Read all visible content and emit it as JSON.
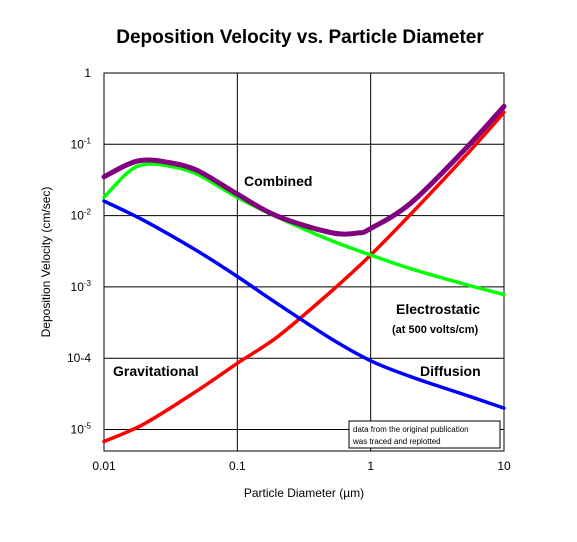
{
  "chart_data": {
    "type": "line",
    "title": "Deposition Velocity vs. Particle Diameter",
    "xlabel": "Particle Diameter (µm)",
    "ylabel": "Deposition Velocity (cm/sec)",
    "xscale": "log",
    "yscale": "log",
    "xlim": [
      0.01,
      10
    ],
    "ylim": [
      5e-06,
      1
    ],
    "grid": true,
    "x_ticks": [
      {
        "value": 0.01,
        "label": "0.01"
      },
      {
        "value": 0.1,
        "label": "0.1"
      },
      {
        "value": 1,
        "label": "1"
      },
      {
        "value": 10,
        "label": "10"
      }
    ],
    "y_ticks": [
      {
        "value": 1,
        "base": "1",
        "exp": ""
      },
      {
        "value": 0.1,
        "base": "10",
        "exp": "-1"
      },
      {
        "value": 0.01,
        "base": "10",
        "exp": "-2"
      },
      {
        "value": 0.001,
        "base": "10",
        "exp": "-3"
      },
      {
        "value": 0.0001,
        "base": "10-4",
        "exp": ""
      },
      {
        "value": 1e-05,
        "base": "10",
        "exp": "-5"
      }
    ],
    "series": [
      {
        "label": "Gravitational",
        "color": "#ff0000",
        "x": [
          0.01,
          0.02,
          0.05,
          0.1,
          0.2,
          0.5,
          1,
          2,
          5,
          10
        ],
        "y": [
          6.8e-06,
          1.2e-05,
          3.5e-05,
          8.5e-05,
          0.0002,
          0.00085,
          0.0028,
          0.0105,
          0.065,
          0.28
        ]
      },
      {
        "label": "Diffusion",
        "color": "#0000ff",
        "x": [
          0.01,
          0.02,
          0.05,
          0.1,
          0.2,
          0.5,
          1,
          2,
          5,
          10
        ],
        "y": [
          0.016,
          0.0085,
          0.0032,
          0.0014,
          0.00058,
          0.00019,
          9.2e-05,
          5.5e-05,
          3.1e-05,
          2e-05
        ]
      },
      {
        "label": "Electrostatic",
        "color": "#00ff00",
        "x": [
          0.01,
          0.015,
          0.02,
          0.03,
          0.05,
          0.1,
          0.2,
          0.5,
          1,
          2,
          5,
          10
        ],
        "y": [
          0.018,
          0.04,
          0.052,
          0.05,
          0.038,
          0.018,
          0.0095,
          0.0045,
          0.0028,
          0.0018,
          0.0011,
          0.00078
        ]
      },
      {
        "label": "Combined",
        "color": "#800080",
        "x": [
          0.01,
          0.015,
          0.02,
          0.03,
          0.05,
          0.1,
          0.2,
          0.5,
          0.8,
          1,
          2,
          5,
          10
        ],
        "y": [
          0.035,
          0.052,
          0.06,
          0.056,
          0.043,
          0.02,
          0.0098,
          0.0058,
          0.0057,
          0.0066,
          0.015,
          0.082,
          0.34
        ]
      }
    ],
    "annotations": {
      "combined": "Combined",
      "electrostatic": "Electrostatic",
      "electrostatic_sub": "(at 500 volts/cm)",
      "gravitational": "Gravitational",
      "diffusion": "Diffusion",
      "note_line1": "data from the original publication",
      "note_line2": "was traced and replotted"
    }
  }
}
